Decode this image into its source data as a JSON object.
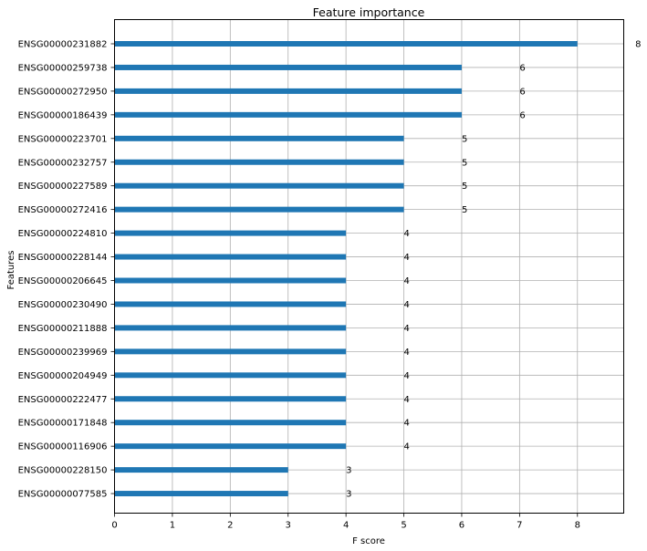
{
  "chart_data": {
    "type": "bar",
    "orientation": "horizontal",
    "title": "Feature importance",
    "xlabel": "F score",
    "ylabel": "Features",
    "xlim": [
      0,
      8.8
    ],
    "xticks": [
      0,
      1,
      2,
      3,
      4,
      5,
      6,
      7,
      8
    ],
    "grid": true,
    "bar_color": "#1f77b4",
    "categories": [
      "ENSG00000231882",
      "ENSG00000259738",
      "ENSG00000272950",
      "ENSG00000186439",
      "ENSG00000223701",
      "ENSG00000232757",
      "ENSG00000227589",
      "ENSG00000272416",
      "ENSG00000224810",
      "ENSG00000228144",
      "ENSG00000206645",
      "ENSG00000230490",
      "ENSG00000211888",
      "ENSG00000239969",
      "ENSG00000204949",
      "ENSG00000222477",
      "ENSG00000171848",
      "ENSG00000116906",
      "ENSG00000228150",
      "ENSG00000077585"
    ],
    "values": [
      8,
      6,
      6,
      6,
      5,
      5,
      5,
      5,
      4,
      4,
      4,
      4,
      4,
      4,
      4,
      4,
      4,
      4,
      3,
      3
    ],
    "value_labels": [
      "8",
      "6",
      "6",
      "6",
      "5",
      "5",
      "5",
      "5",
      "4",
      "4",
      "4",
      "4",
      "4",
      "4",
      "4",
      "4",
      "4",
      "4",
      "3",
      "3"
    ]
  }
}
